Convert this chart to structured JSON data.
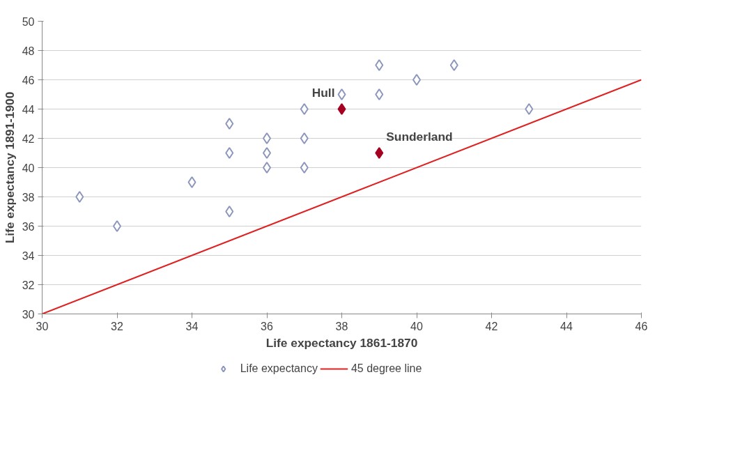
{
  "chart_data": {
    "type": "scatter",
    "xlabel": "Life expectancy 1861-1870",
    "ylabel": "Life expectancy 1891-1900",
    "xlim": [
      30,
      46
    ],
    "xticks": [
      30,
      32,
      34,
      36,
      38,
      40,
      42,
      44,
      46
    ],
    "ylim": [
      30,
      50
    ],
    "yticks": [
      30,
      32,
      34,
      36,
      38,
      40,
      42,
      44,
      46,
      48,
      50
    ],
    "grid": "y",
    "legend": "bottom",
    "marker": "diamond",
    "series": [
      {
        "name": "Life expectancy",
        "color": "#8c96bd",
        "x": [
          31,
          32,
          34,
          35,
          35,
          35,
          36,
          36,
          36,
          37,
          37,
          37,
          38,
          39,
          39,
          40,
          41,
          43
        ],
        "values": [
          38,
          36,
          39,
          43,
          41,
          37,
          42,
          41,
          40,
          44,
          42,
          40,
          45,
          47,
          45,
          46,
          47,
          44
        ]
      },
      {
        "color": "#a50021",
        "x": [
          38,
          39
        ],
        "values": [
          44,
          41
        ]
      },
      {
        "name": "45 degree line",
        "type": "line",
        "color": "#e02020",
        "marker": "none",
        "x": [
          30,
          46
        ],
        "values": [
          30,
          46
        ]
      }
    ],
    "annotations": [
      {
        "text": "Hull",
        "x": 38,
        "y": 44
      },
      {
        "text": "Sunderland",
        "x": 39,
        "y": 41
      }
    ]
  }
}
